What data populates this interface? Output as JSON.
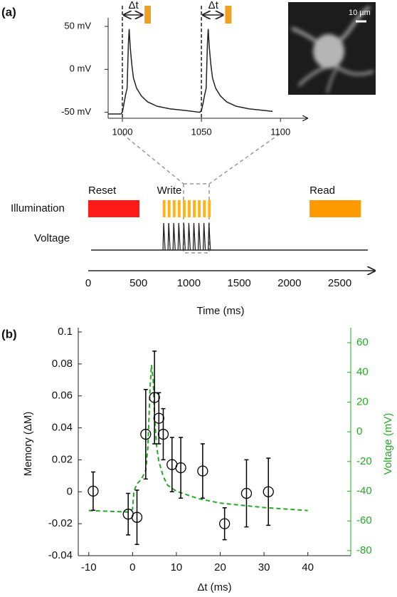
{
  "panel_labels": [
    "(a)",
    "(b)"
  ],
  "scale_bar": "10 µm",
  "chart_data": [
    {
      "type": "line",
      "color": "#222222",
      "x": [
        991,
        999,
        1000,
        1001,
        1002,
        1003,
        1003.8,
        1004.3,
        1005,
        1006,
        1007,
        1009,
        1012,
        1016,
        1022,
        1030,
        1040,
        1049,
        1050,
        1051,
        1052,
        1053,
        1053.8,
        1054.3,
        1055,
        1056,
        1057,
        1059,
        1062,
        1066,
        1072,
        1080,
        1090,
        1095
      ],
      "values": [
        -52,
        -52,
        -50,
        -40,
        -30,
        -22,
        30,
        47,
        25,
        5,
        -10,
        -22,
        -31,
        -38,
        -43,
        -46,
        -48,
        -50,
        -48,
        -40,
        -30,
        -22,
        30,
        47,
        25,
        5,
        -10,
        -22,
        -31,
        -38,
        -43,
        -46,
        -48,
        -49
      ],
      "xlim": [
        991,
        1117
      ],
      "xticks": [
        1000,
        1050,
        1100
      ],
      "ylim": [
        -57,
        60
      ],
      "yticks": [
        {
          "value": 50,
          "label": "50 mV"
        },
        {
          "value": 0,
          "label": "0 mV"
        },
        {
          "value": -50,
          "label": "-50 mV"
        }
      ],
      "stimulus_times": [
        1000,
        1050
      ],
      "pulses": [
        {
          "start": 1014,
          "end": 1018
        },
        {
          "start": 1065,
          "end": 1069
        }
      ],
      "pulse_color": "#f0a020",
      "annotations": [
        "Δt",
        "Δt"
      ]
    },
    {
      "type": "timeline",
      "xlim": [
        0,
        2850
      ],
      "xticks": [
        0,
        500,
        1000,
        1500,
        2000,
        2500
      ],
      "xlabel": "Time (ms)",
      "rows": [
        "Illumination",
        "Voltage"
      ],
      "segments": [
        {
          "name": "Reset",
          "start": 0,
          "end": 510,
          "color": "#ff1a1a"
        },
        {
          "name": "Write",
          "pulses": [
            740,
            790,
            840,
            890,
            940,
            990,
            1040,
            1090,
            1140,
            1190
          ],
          "pulse_width": 28,
          "color": "#ffb31a"
        },
        {
          "name": "Read",
          "start": 2200,
          "end": 2710,
          "color": "#ff9900"
        }
      ],
      "spikes": [
        750,
        800,
        850,
        900,
        950,
        1000,
        1050,
        1100,
        1150,
        1200
      ]
    },
    {
      "type": "scatter",
      "xlabel": "Δt (ms)",
      "ylabel": "Memory (ΔM)",
      "y2label": "Voltage (mV)",
      "x": [
        -9,
        -1,
        1,
        3,
        5,
        6,
        7,
        9,
        11,
        16,
        21,
        26,
        31
      ],
      "values": [
        0.0004,
        -0.014,
        -0.016,
        0.036,
        0.059,
        0.046,
        0.036,
        0.017,
        0.015,
        0.013,
        -0.02,
        -0.001,
        0.0
      ],
      "errors": [
        0.012,
        0.013,
        0.017,
        0.028,
        0.029,
        0.016,
        0.016,
        0.017,
        0.019,
        0.017,
        0.01,
        0.021,
        0.021
      ],
      "color": "#000000",
      "line": {
        "axis": "y2",
        "color": "#22aa22",
        "x": [
          -10,
          -1,
          0,
          0.3,
          1,
          2,
          3,
          3.5,
          4,
          4.3,
          4.7,
          5,
          5.5,
          6,
          7,
          8,
          10,
          15,
          20,
          30,
          40
        ],
        "values": [
          -53,
          -54,
          -52,
          -40,
          -35,
          -32,
          -26,
          -10,
          30,
          45,
          35,
          10,
          -10,
          -20,
          -30,
          -36,
          -40,
          -45,
          -48,
          -51,
          -53
        ]
      },
      "xlim": [
        -12.4,
        49.8
      ],
      "xticks": [
        -10,
        0,
        10,
        20,
        30,
        40
      ],
      "ylim": [
        -0.04,
        0.1
      ],
      "yticks": [
        -0.04,
        -0.02,
        0,
        0.02,
        0.04,
        0.06,
        0.08,
        0.1
      ],
      "y2lim": [
        -83.4,
        67.2
      ],
      "y2ticks": [
        -80,
        -60,
        -40,
        -20,
        0,
        20,
        40,
        60
      ]
    }
  ]
}
